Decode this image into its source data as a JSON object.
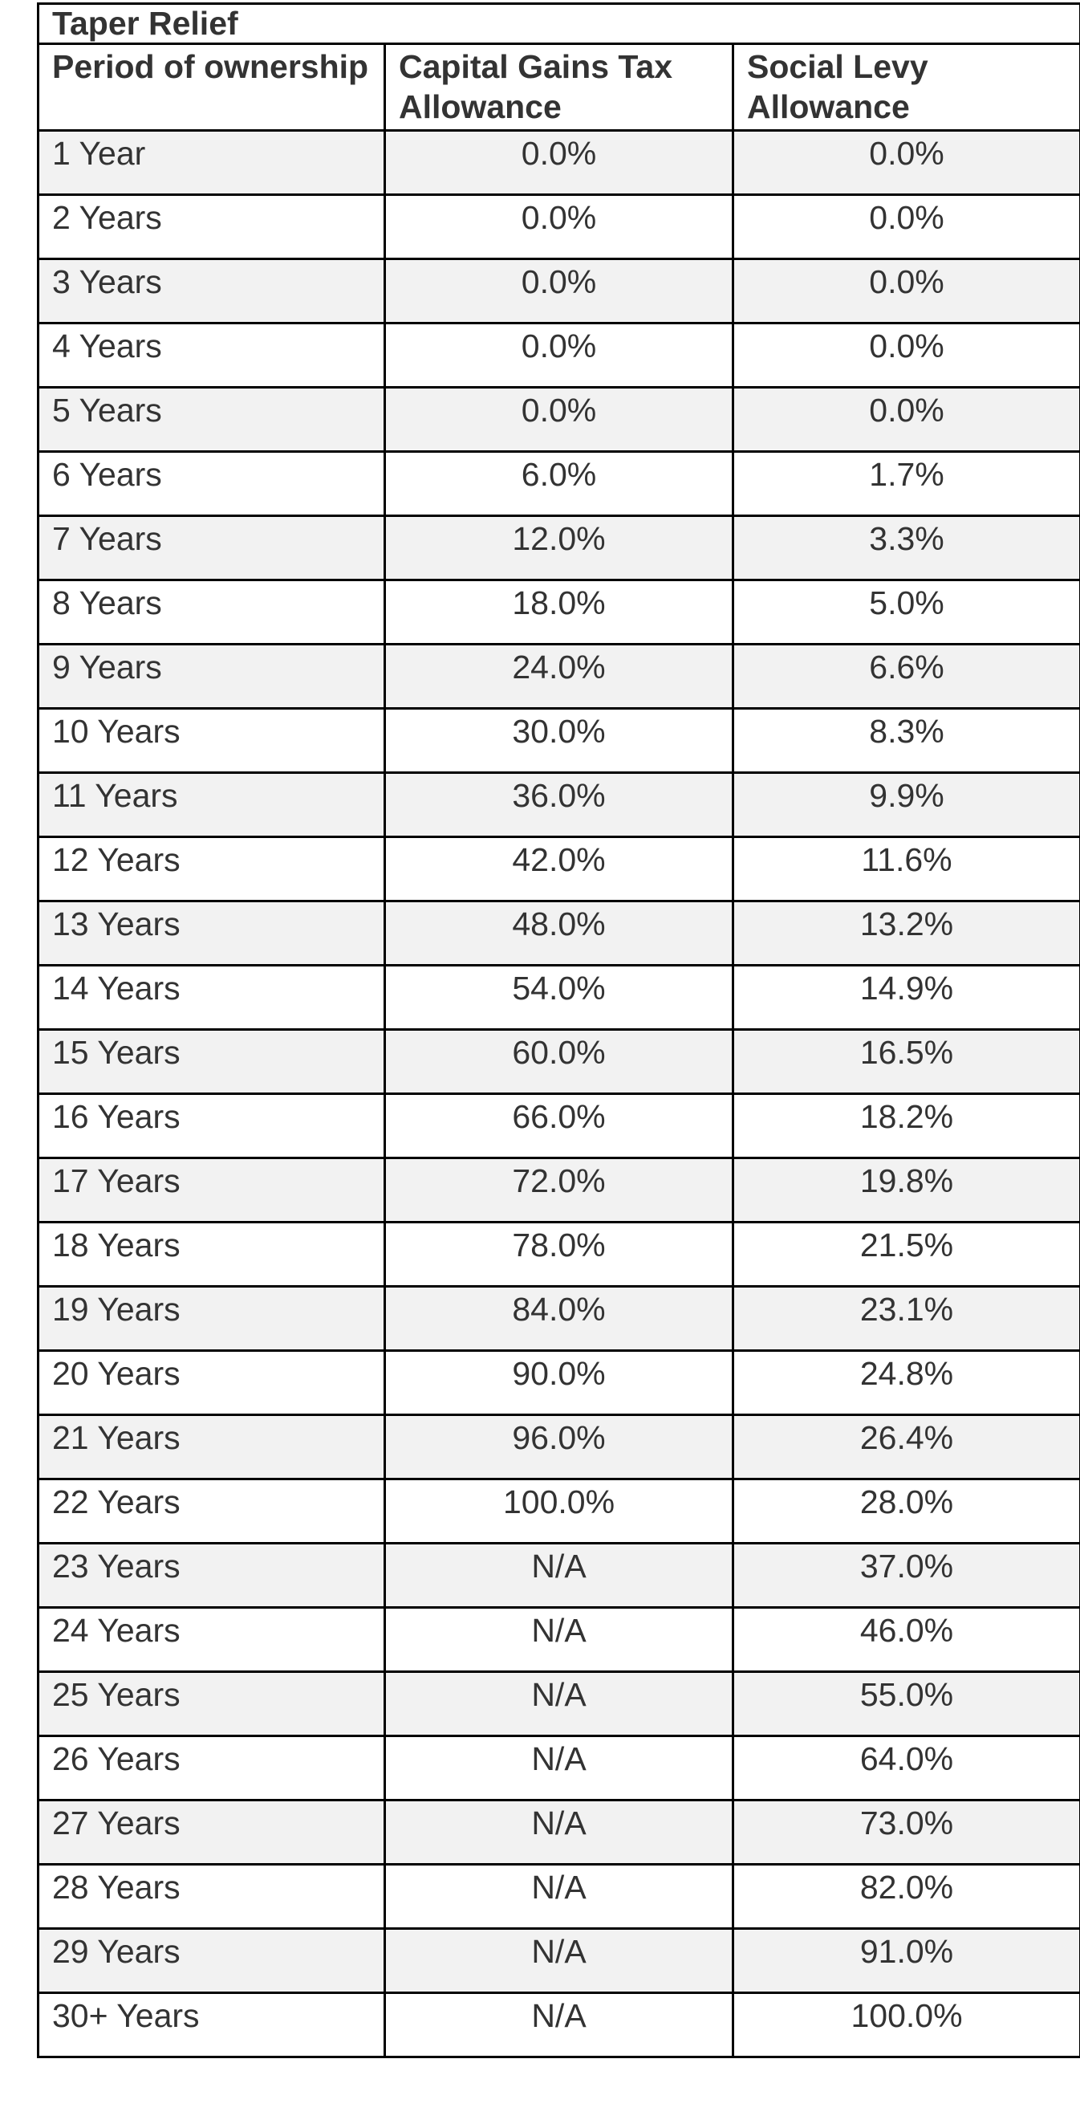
{
  "table": {
    "title": "Taper Relief",
    "headers": [
      "Period of ownership",
      "Capital Gains Tax Allowance",
      "Social Levy Allowance"
    ],
    "rows": [
      {
        "period": "1 Year",
        "cgt": "0.0%",
        "social": "0.0%"
      },
      {
        "period": "2 Years",
        "cgt": "0.0%",
        "social": "0.0%"
      },
      {
        "period": "3 Years",
        "cgt": "0.0%",
        "social": "0.0%"
      },
      {
        "period": "4 Years",
        "cgt": "0.0%",
        "social": "0.0%"
      },
      {
        "period": "5 Years",
        "cgt": "0.0%",
        "social": "0.0%"
      },
      {
        "period": "6 Years",
        "cgt": "6.0%",
        "social": "1.7%"
      },
      {
        "period": "7 Years",
        "cgt": "12.0%",
        "social": "3.3%"
      },
      {
        "period": "8 Years",
        "cgt": "18.0%",
        "social": "5.0%"
      },
      {
        "period": "9 Years",
        "cgt": "24.0%",
        "social": "6.6%"
      },
      {
        "period": "10 Years",
        "cgt": "30.0%",
        "social": "8.3%"
      },
      {
        "period": "11 Years",
        "cgt": "36.0%",
        "social": "9.9%"
      },
      {
        "period": "12 Years",
        "cgt": "42.0%",
        "social": "11.6%"
      },
      {
        "period": "13 Years",
        "cgt": "48.0%",
        "social": "13.2%"
      },
      {
        "period": "14 Years",
        "cgt": "54.0%",
        "social": "14.9%"
      },
      {
        "period": "15 Years",
        "cgt": "60.0%",
        "social": "16.5%"
      },
      {
        "period": "16 Years",
        "cgt": "66.0%",
        "social": "18.2%"
      },
      {
        "period": "17 Years",
        "cgt": "72.0%",
        "social": "19.8%"
      },
      {
        "period": "18 Years",
        "cgt": "78.0%",
        "social": "21.5%"
      },
      {
        "period": "19 Years",
        "cgt": "84.0%",
        "social": "23.1%"
      },
      {
        "period": "20 Years",
        "cgt": "90.0%",
        "social": "24.8%"
      },
      {
        "period": "21 Years",
        "cgt": "96.0%",
        "social": "26.4%"
      },
      {
        "period": "22 Years",
        "cgt": "100.0%",
        "social": "28.0%"
      },
      {
        "period": "23 Years",
        "cgt": "N/A",
        "social": "37.0%"
      },
      {
        "period": "24 Years",
        "cgt": "N/A",
        "social": "46.0%"
      },
      {
        "period": "25 Years",
        "cgt": "N/A",
        "social": "55.0%"
      },
      {
        "period": "26 Years",
        "cgt": "N/A",
        "social": "64.0%"
      },
      {
        "period": "27 Years",
        "cgt": "N/A",
        "social": "73.0%"
      },
      {
        "period": "28 Years",
        "cgt": "N/A",
        "social": "82.0%"
      },
      {
        "period": "29 Years",
        "cgt": "N/A",
        "social": "91.0%"
      },
      {
        "period": "30+ Years",
        "cgt": "N/A",
        "social": "100.0%"
      }
    ],
    "colors": {
      "border": "#000000",
      "text": "#333333",
      "stripe": "#f2f2f2",
      "row_white": "#ffffff"
    }
  }
}
